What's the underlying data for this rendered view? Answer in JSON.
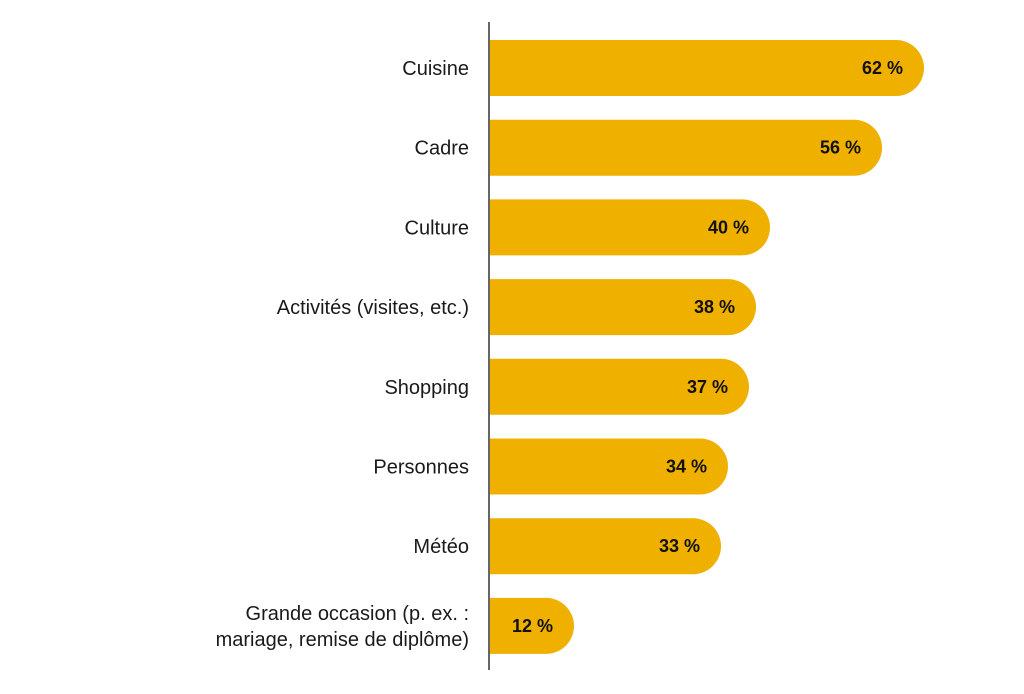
{
  "chart_data": {
    "type": "bar",
    "orientation": "horizontal",
    "categories": [
      "Cuisine",
      "Cadre",
      "Culture",
      "Activités (visites, etc.)",
      "Shopping",
      "Personnes",
      "Météo",
      "Grande occasion (p. ex. :\nmariage, remise de diplôme)"
    ],
    "values": [
      62,
      56,
      40,
      38,
      37,
      34,
      33,
      12
    ],
    "value_labels": [
      "62 %",
      "56 %",
      "40 %",
      "38 %",
      "37 %",
      "34 %",
      "33 %",
      "12 %"
    ],
    "unit": "%",
    "bar_color": "#F0B000",
    "axis_color": "#333333",
    "grid": false,
    "legend": "none",
    "title": "",
    "xlabel": "",
    "ylabel": ""
  }
}
